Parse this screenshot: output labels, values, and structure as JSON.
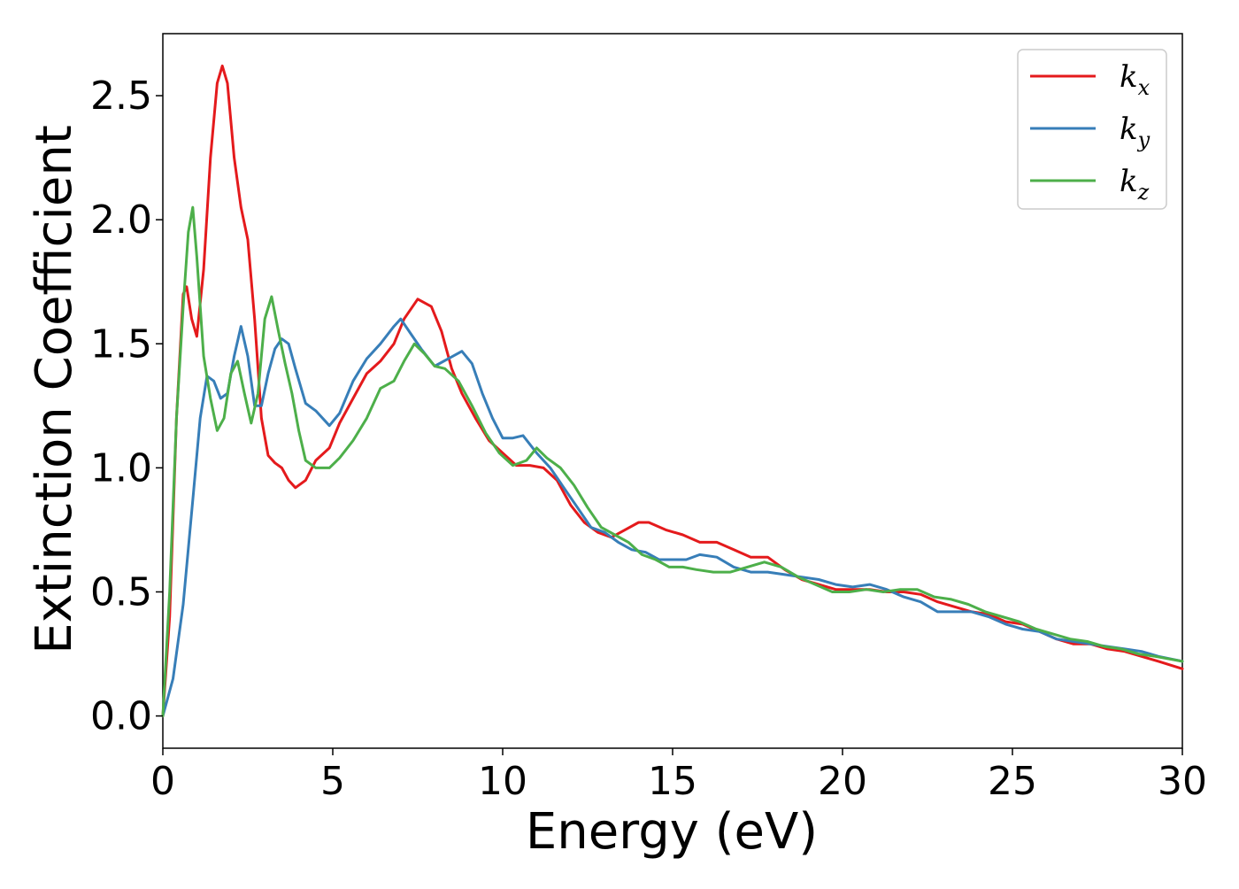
{
  "chart_data": {
    "type": "line",
    "title": "",
    "xlabel": "Energy (eV)",
    "ylabel": "Extinction Coefficient",
    "xlim": [
      0,
      30
    ],
    "ylim": [
      -0.13,
      2.75
    ],
    "xticks": [
      0,
      5,
      10,
      15,
      20,
      25,
      30
    ],
    "yticks": [
      0.0,
      0.5,
      1.0,
      1.5,
      2.0,
      2.5
    ],
    "xtick_labels": [
      "0",
      "5",
      "10",
      "15",
      "20",
      "25",
      "30"
    ],
    "ytick_labels": [
      "0.0",
      "0.5",
      "1.0",
      "1.5",
      "2.0",
      "2.5"
    ],
    "grid": false,
    "legend_position": "top-right",
    "series": [
      {
        "name": "k",
        "subscript": "x",
        "color": "#e41a1c",
        "points": [
          [
            0,
            0.0
          ],
          [
            0.2,
            0.4
          ],
          [
            0.4,
            1.2
          ],
          [
            0.6,
            1.7
          ],
          [
            0.7,
            1.73
          ],
          [
            0.85,
            1.6
          ],
          [
            1.0,
            1.53
          ],
          [
            1.2,
            1.8
          ],
          [
            1.4,
            2.25
          ],
          [
            1.6,
            2.55
          ],
          [
            1.75,
            2.62
          ],
          [
            1.9,
            2.55
          ],
          [
            2.1,
            2.25
          ],
          [
            2.3,
            2.05
          ],
          [
            2.5,
            1.92
          ],
          [
            2.7,
            1.6
          ],
          [
            2.9,
            1.2
          ],
          [
            3.1,
            1.05
          ],
          [
            3.3,
            1.02
          ],
          [
            3.5,
            1.0
          ],
          [
            3.7,
            0.95
          ],
          [
            3.9,
            0.92
          ],
          [
            4.2,
            0.95
          ],
          [
            4.5,
            1.03
          ],
          [
            4.9,
            1.08
          ],
          [
            5.2,
            1.18
          ],
          [
            5.6,
            1.28
          ],
          [
            6.0,
            1.38
          ],
          [
            6.4,
            1.43
          ],
          [
            6.8,
            1.5
          ],
          [
            7.1,
            1.6
          ],
          [
            7.5,
            1.68
          ],
          [
            7.9,
            1.65
          ],
          [
            8.2,
            1.55
          ],
          [
            8.5,
            1.4
          ],
          [
            8.8,
            1.3
          ],
          [
            9.2,
            1.2
          ],
          [
            9.6,
            1.11
          ],
          [
            10.0,
            1.06
          ],
          [
            10.4,
            1.01
          ],
          [
            10.8,
            1.01
          ],
          [
            11.2,
            1.0
          ],
          [
            11.6,
            0.95
          ],
          [
            12.0,
            0.85
          ],
          [
            12.4,
            0.78
          ],
          [
            12.8,
            0.74
          ],
          [
            13.2,
            0.72
          ],
          [
            13.6,
            0.75
          ],
          [
            14.0,
            0.78
          ],
          [
            14.3,
            0.78
          ],
          [
            14.8,
            0.75
          ],
          [
            15.3,
            0.73
          ],
          [
            15.8,
            0.7
          ],
          [
            16.3,
            0.7
          ],
          [
            16.8,
            0.67
          ],
          [
            17.3,
            0.64
          ],
          [
            17.8,
            0.64
          ],
          [
            18.3,
            0.59
          ],
          [
            18.8,
            0.55
          ],
          [
            19.3,
            0.53
          ],
          [
            19.8,
            0.51
          ],
          [
            20.3,
            0.51
          ],
          [
            20.8,
            0.51
          ],
          [
            21.3,
            0.5
          ],
          [
            21.8,
            0.5
          ],
          [
            22.3,
            0.49
          ],
          [
            22.8,
            0.46
          ],
          [
            23.3,
            0.44
          ],
          [
            23.8,
            0.42
          ],
          [
            24.3,
            0.41
          ],
          [
            24.8,
            0.38
          ],
          [
            25.3,
            0.37
          ],
          [
            25.8,
            0.34
          ],
          [
            26.3,
            0.31
          ],
          [
            26.8,
            0.29
          ],
          [
            27.3,
            0.29
          ],
          [
            27.8,
            0.27
          ],
          [
            28.3,
            0.26
          ],
          [
            28.8,
            0.24
          ],
          [
            29.3,
            0.22
          ],
          [
            30.0,
            0.19
          ]
        ]
      },
      {
        "name": "k",
        "subscript": "y",
        "color": "#377eb8",
        "points": [
          [
            0,
            0.0
          ],
          [
            0.3,
            0.15
          ],
          [
            0.6,
            0.45
          ],
          [
            0.9,
            0.9
          ],
          [
            1.1,
            1.2
          ],
          [
            1.3,
            1.37
          ],
          [
            1.5,
            1.35
          ],
          [
            1.7,
            1.28
          ],
          [
            1.9,
            1.3
          ],
          [
            2.1,
            1.45
          ],
          [
            2.3,
            1.57
          ],
          [
            2.5,
            1.45
          ],
          [
            2.7,
            1.25
          ],
          [
            2.9,
            1.25
          ],
          [
            3.1,
            1.38
          ],
          [
            3.3,
            1.48
          ],
          [
            3.5,
            1.52
          ],
          [
            3.7,
            1.5
          ],
          [
            3.9,
            1.4
          ],
          [
            4.2,
            1.26
          ],
          [
            4.5,
            1.23
          ],
          [
            4.9,
            1.17
          ],
          [
            5.2,
            1.22
          ],
          [
            5.6,
            1.35
          ],
          [
            6.0,
            1.44
          ],
          [
            6.4,
            1.5
          ],
          [
            6.8,
            1.57
          ],
          [
            7.0,
            1.6
          ],
          [
            7.3,
            1.54
          ],
          [
            7.6,
            1.48
          ],
          [
            8.0,
            1.41
          ],
          [
            8.4,
            1.44
          ],
          [
            8.8,
            1.47
          ],
          [
            9.1,
            1.42
          ],
          [
            9.4,
            1.3
          ],
          [
            9.7,
            1.2
          ],
          [
            10.0,
            1.12
          ],
          [
            10.3,
            1.12
          ],
          [
            10.6,
            1.13
          ],
          [
            11.0,
            1.06
          ],
          [
            11.4,
            1.0
          ],
          [
            11.8,
            0.92
          ],
          [
            12.2,
            0.84
          ],
          [
            12.6,
            0.76
          ],
          [
            13.0,
            0.74
          ],
          [
            13.4,
            0.7
          ],
          [
            13.8,
            0.67
          ],
          [
            14.2,
            0.66
          ],
          [
            14.6,
            0.63
          ],
          [
            15.0,
            0.63
          ],
          [
            15.4,
            0.63
          ],
          [
            15.8,
            0.65
          ],
          [
            16.3,
            0.64
          ],
          [
            16.8,
            0.6
          ],
          [
            17.3,
            0.58
          ],
          [
            17.8,
            0.58
          ],
          [
            18.3,
            0.57
          ],
          [
            18.8,
            0.56
          ],
          [
            19.3,
            0.55
          ],
          [
            19.8,
            0.53
          ],
          [
            20.3,
            0.52
          ],
          [
            20.8,
            0.53
          ],
          [
            21.3,
            0.51
          ],
          [
            21.8,
            0.48
          ],
          [
            22.3,
            0.46
          ],
          [
            22.8,
            0.42
          ],
          [
            23.3,
            0.42
          ],
          [
            23.8,
            0.42
          ],
          [
            24.3,
            0.4
          ],
          [
            24.8,
            0.37
          ],
          [
            25.3,
            0.35
          ],
          [
            25.8,
            0.34
          ],
          [
            26.3,
            0.31
          ],
          [
            26.8,
            0.3
          ],
          [
            27.3,
            0.29
          ],
          [
            27.8,
            0.28
          ],
          [
            28.3,
            0.27
          ],
          [
            28.8,
            0.26
          ],
          [
            29.3,
            0.24
          ],
          [
            30.0,
            0.22
          ]
        ]
      },
      {
        "name": "k",
        "subscript": "z",
        "color": "#4daf4a",
        "points": [
          [
            0,
            0.0
          ],
          [
            0.2,
            0.5
          ],
          [
            0.4,
            1.2
          ],
          [
            0.6,
            1.65
          ],
          [
            0.75,
            1.95
          ],
          [
            0.88,
            2.05
          ],
          [
            1.0,
            1.85
          ],
          [
            1.2,
            1.45
          ],
          [
            1.4,
            1.28
          ],
          [
            1.6,
            1.15
          ],
          [
            1.8,
            1.2
          ],
          [
            2.0,
            1.38
          ],
          [
            2.2,
            1.43
          ],
          [
            2.4,
            1.3
          ],
          [
            2.6,
            1.18
          ],
          [
            2.8,
            1.3
          ],
          [
            3.0,
            1.6
          ],
          [
            3.2,
            1.69
          ],
          [
            3.4,
            1.55
          ],
          [
            3.6,
            1.42
          ],
          [
            3.8,
            1.3
          ],
          [
            4.0,
            1.15
          ],
          [
            4.2,
            1.03
          ],
          [
            4.5,
            1.0
          ],
          [
            4.9,
            1.0
          ],
          [
            5.2,
            1.04
          ],
          [
            5.6,
            1.11
          ],
          [
            6.0,
            1.2
          ],
          [
            6.4,
            1.32
          ],
          [
            6.8,
            1.35
          ],
          [
            7.1,
            1.43
          ],
          [
            7.4,
            1.5
          ],
          [
            7.7,
            1.46
          ],
          [
            8.0,
            1.41
          ],
          [
            8.3,
            1.4
          ],
          [
            8.7,
            1.35
          ],
          [
            9.1,
            1.25
          ],
          [
            9.5,
            1.14
          ],
          [
            9.9,
            1.06
          ],
          [
            10.3,
            1.01
          ],
          [
            10.7,
            1.03
          ],
          [
            11.0,
            1.08
          ],
          [
            11.3,
            1.04
          ],
          [
            11.7,
            1.0
          ],
          [
            12.1,
            0.93
          ],
          [
            12.5,
            0.84
          ],
          [
            12.9,
            0.76
          ],
          [
            13.3,
            0.73
          ],
          [
            13.7,
            0.7
          ],
          [
            14.1,
            0.65
          ],
          [
            14.5,
            0.63
          ],
          [
            14.9,
            0.6
          ],
          [
            15.3,
            0.6
          ],
          [
            15.7,
            0.59
          ],
          [
            16.2,
            0.58
          ],
          [
            16.7,
            0.58
          ],
          [
            17.2,
            0.6
          ],
          [
            17.7,
            0.62
          ],
          [
            18.2,
            0.6
          ],
          [
            18.7,
            0.56
          ],
          [
            19.2,
            0.53
          ],
          [
            19.7,
            0.5
          ],
          [
            20.2,
            0.5
          ],
          [
            20.7,
            0.51
          ],
          [
            21.2,
            0.5
          ],
          [
            21.7,
            0.51
          ],
          [
            22.2,
            0.51
          ],
          [
            22.7,
            0.48
          ],
          [
            23.2,
            0.47
          ],
          [
            23.7,
            0.45
          ],
          [
            24.2,
            0.42
          ],
          [
            24.7,
            0.4
          ],
          [
            25.2,
            0.38
          ],
          [
            25.7,
            0.35
          ],
          [
            26.2,
            0.33
          ],
          [
            26.7,
            0.31
          ],
          [
            27.2,
            0.3
          ],
          [
            27.7,
            0.28
          ],
          [
            28.2,
            0.27
          ],
          [
            28.7,
            0.25
          ],
          [
            29.2,
            0.24
          ],
          [
            30.0,
            0.22
          ]
        ]
      }
    ]
  }
}
